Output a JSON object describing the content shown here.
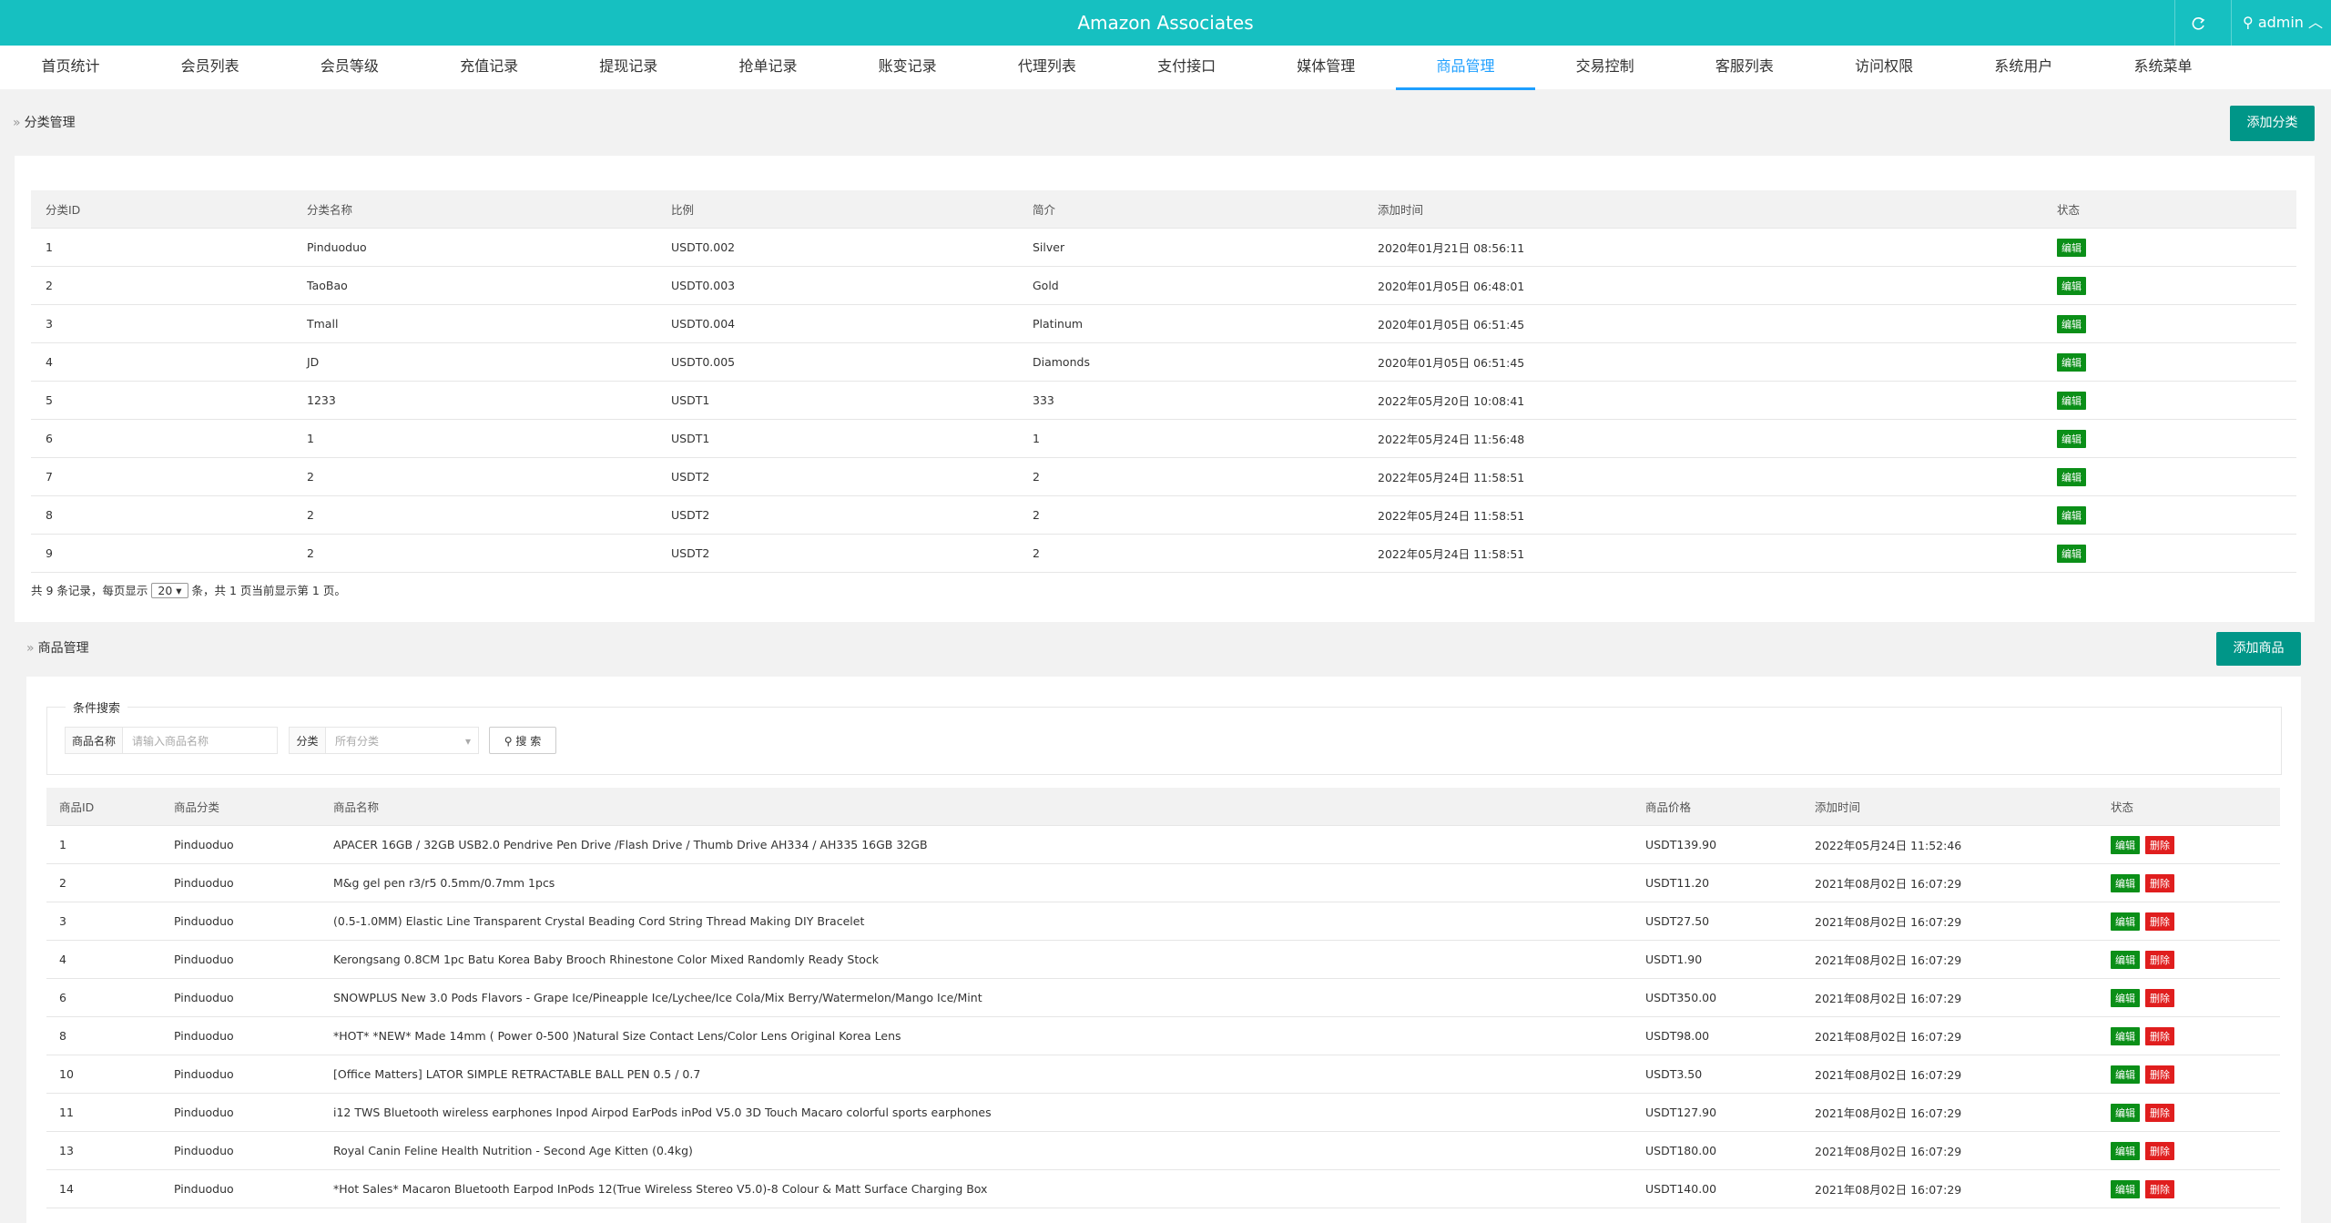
{
  "header": {
    "title": "Amazon Associates",
    "user": "admin"
  },
  "nav": [
    "首页统计",
    "会员列表",
    "会员等级",
    "充值记录",
    "提现记录",
    "抢单记录",
    "账变记录",
    "代理列表",
    "支付接口",
    "媒体管理",
    "商品管理",
    "交易控制",
    "客服列表",
    "访问权限",
    "系统用户",
    "系统菜单"
  ],
  "category_section": {
    "title": "分类管理",
    "add_button": "添加分类",
    "table": {
      "columns": [
        "分类ID",
        "分类名称",
        "比例",
        "简介",
        "添加时间",
        "状态"
      ],
      "edit_label": "编辑",
      "rows": [
        [
          "1",
          "Pinduoduo",
          "USDT0.002",
          "Silver",
          "2020年01月21日 08:56:11"
        ],
        [
          "2",
          "TaoBao",
          "USDT0.003",
          "Gold",
          "2020年01月05日 06:48:01"
        ],
        [
          "3",
          "Tmall",
          "USDT0.004",
          "Platinum",
          "2020年01月05日 06:51:45"
        ],
        [
          "4",
          "JD",
          "USDT0.005",
          "Diamonds",
          "2020年01月05日 06:51:45"
        ],
        [
          "5",
          "1233",
          "USDT1",
          "333",
          "2022年05月20日 10:08:41"
        ],
        [
          "6",
          "1",
          "USDT1",
          "1",
          "2022年05月24日 11:56:48"
        ],
        [
          "7",
          "2",
          "USDT2",
          "2",
          "2022年05月24日 11:58:51"
        ],
        [
          "8",
          "2",
          "USDT2",
          "2",
          "2022年05月24日 11:58:51"
        ],
        [
          "9",
          "2",
          "USDT2",
          "2",
          "2022年05月24日 11:58:51"
        ]
      ]
    },
    "pagination": {
      "before": "共 9 条记录，每页显示",
      "page_size": "20",
      "after": "条，共 1 页当前显示第 1 页。"
    }
  },
  "product_section": {
    "title": "商品管理",
    "add_button": "添加商品",
    "search": {
      "legend": "条件搜索",
      "name_label": "商品名称",
      "name_placeholder": "请输入商品名称",
      "category_label": "分类",
      "category_placeholder": "所有分类",
      "search_button": "搜 索"
    },
    "table": {
      "columns": [
        "商品ID",
        "商品分类",
        "商品名称",
        "商品价格",
        "添加时间",
        "状态"
      ],
      "edit_label": "编辑",
      "delete_label": "删除",
      "rows": [
        [
          "1",
          "Pinduoduo",
          "APACER 16GB / 32GB USB2.0 Pendrive Pen Drive /Flash Drive / Thumb Drive AH334 / AH335 16GB 32GB",
          "USDT139.90",
          "2022年05月24日 11:52:46"
        ],
        [
          "2",
          "Pinduoduo",
          "M&g gel pen r3/r5 0.5mm/0.7mm 1pcs",
          "USDT11.20",
          "2021年08月02日 16:07:29"
        ],
        [
          "3",
          "Pinduoduo",
          "(0.5-1.0MM) Elastic Line Transparent Crystal Beading Cord String Thread Making DIY Bracelet",
          "USDT27.50",
          "2021年08月02日 16:07:29"
        ],
        [
          "4",
          "Pinduoduo",
          "Kerongsang 0.8CM 1pc Batu Korea Baby Brooch Rhinestone Color Mixed Randomly Ready Stock",
          "USDT1.90",
          "2021年08月02日 16:07:29"
        ],
        [
          "6",
          "Pinduoduo",
          "SNOWPLUS New 3.0 Pods Flavors - Grape Ice/Pineapple Ice/Lychee/Ice Cola/Mix Berry/Watermelon/Mango Ice/Mint",
          "USDT350.00",
          "2021年08月02日 16:07:29"
        ],
        [
          "8",
          "Pinduoduo",
          "*HOT* *NEW* Made 14mm ( Power 0-500 )Natural Size Contact Lens/Color Lens Original Korea Lens",
          "USDT98.00",
          "2021年08月02日 16:07:29"
        ],
        [
          "10",
          "Pinduoduo",
          "[Office Matters] LATOR SIMPLE RETRACTABLE BALL PEN 0.5 / 0.7",
          "USDT3.50",
          "2021年08月02日 16:07:29"
        ],
        [
          "11",
          "Pinduoduo",
          "i12 TWS Bluetooth wireless earphones Inpod Airpod EarPods inPod V5.0 3D Touch Macaro colorful sports earphones",
          "USDT127.90",
          "2021年08月02日 16:07:29"
        ],
        [
          "13",
          "Pinduoduo",
          "Royal Canin Feline Health Nutrition - Second Age Kitten (0.4kg)",
          "USDT180.00",
          "2021年08月02日 16:07:29"
        ],
        [
          "14",
          "Pinduoduo",
          "*Hot Sales* Macaron Bluetooth Earpod InPods 12(True Wireless Stereo V5.0)-8 Colour & Matt Surface Charging Box",
          "USDT140.00",
          "2021年08月02日 16:07:29"
        ]
      ]
    }
  }
}
